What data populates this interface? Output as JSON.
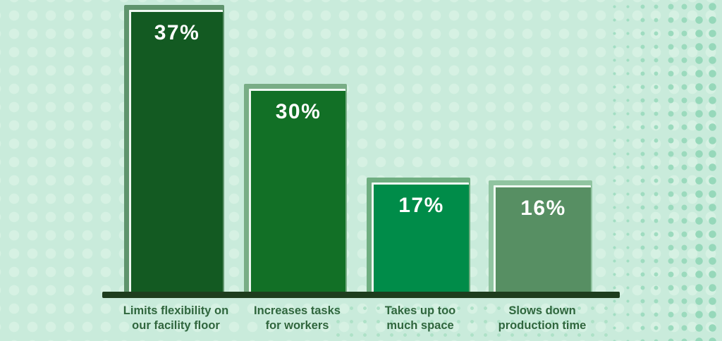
{
  "chart_data": {
    "type": "bar",
    "title": "",
    "xlabel": "",
    "ylabel": "",
    "legend": false,
    "grid": false,
    "ylim": [
      0,
      40
    ],
    "categories": [
      "Limits flexibility on our facility floor",
      "Increases tasks for workers",
      "Takes up too much space",
      "Slows down production time"
    ],
    "values": [
      37,
      30,
      17,
      16
    ],
    "value_labels": [
      "37%",
      "30%",
      "17%",
      "16%"
    ],
    "bar_colors": [
      "#135a22",
      "#127026",
      "#008c49",
      "#578f63"
    ],
    "bar_shadow_colors": [
      "#5f946d",
      "#79ad86",
      "#6fae81",
      "#90c4a0"
    ],
    "bar_outline_color": "#eef8f1",
    "baseline_color": "#1e3d1e",
    "value_label_color": "#ffffff",
    "category_label_color": "#2f663d",
    "background_color": "#c9ebdb",
    "dot_pattern_color": "#9bdabd"
  }
}
